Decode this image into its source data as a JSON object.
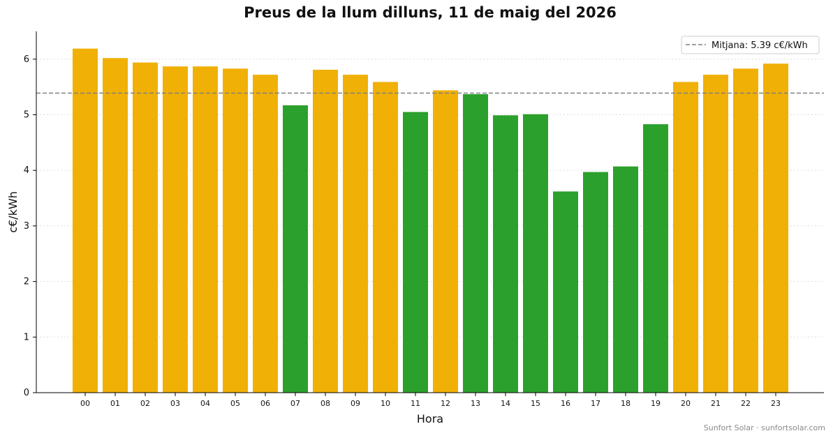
{
  "chart_data": {
    "type": "bar",
    "title": "Preus de la llum dilluns, 11 de maig del 2026",
    "xlabel": "Hora",
    "ylabel": "c€/kWh",
    "categories": [
      "00",
      "01",
      "02",
      "03",
      "04",
      "05",
      "06",
      "07",
      "08",
      "09",
      "10",
      "11",
      "12",
      "13",
      "14",
      "15",
      "16",
      "17",
      "18",
      "19",
      "20",
      "21",
      "22",
      "23"
    ],
    "values": [
      6.19,
      6.02,
      5.94,
      5.87,
      5.87,
      5.83,
      5.72,
      5.17,
      5.81,
      5.72,
      5.59,
      5.05,
      5.44,
      5.37,
      4.99,
      5.01,
      3.62,
      3.97,
      4.07,
      4.83,
      5.59,
      5.72,
      5.83,
      5.92
    ],
    "bar_status": [
      "high",
      "high",
      "high",
      "high",
      "high",
      "high",
      "high",
      "low",
      "high",
      "high",
      "high",
      "low",
      "high",
      "low",
      "low",
      "low",
      "low",
      "low",
      "low",
      "low",
      "high",
      "high",
      "high",
      "high"
    ],
    "colors": {
      "high": "#f0b005",
      "low": "#2ca02c",
      "mean_line": "#808080"
    },
    "ylim": [
      0,
      6.5
    ],
    "yticks": [
      0,
      1,
      2,
      3,
      4,
      5,
      6
    ],
    "grid": "horizontal-dotted",
    "mean": 5.39,
    "legend": {
      "label": "Mitjana: 5.39 c€/kWh",
      "position": "top-right"
    },
    "footer": "Sunfort Solar · sunfortsolar.com"
  }
}
